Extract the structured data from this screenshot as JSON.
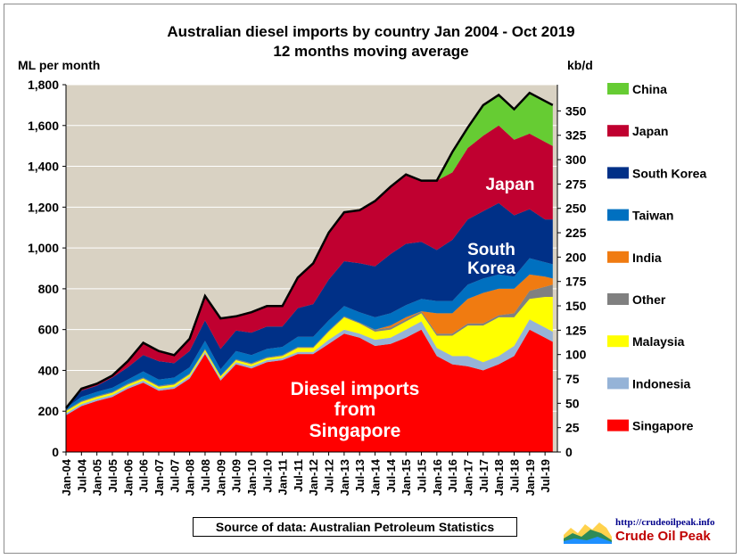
{
  "chart_data": {
    "type": "area",
    "stacked": true,
    "title": "Australian diesel imports by country Jan 2004 - Oct 2019",
    "subtitle": "12 months moving average",
    "ylabel_left": "ML per month",
    "ylabel_right": "kb/d",
    "ylim": [
      0,
      1800
    ],
    "yticks_left": [
      "0",
      "200",
      "400",
      "600",
      "800",
      "1,000",
      "1,200",
      "1,400",
      "1,600",
      "1,800"
    ],
    "yticks_right": [
      "0",
      "25",
      "50",
      "75",
      "100",
      "125",
      "150",
      "175",
      "200",
      "225",
      "250",
      "275",
      "300",
      "325",
      "350"
    ],
    "x_ticks": [
      "Jan-04",
      "Jul-04",
      "Jan-05",
      "Jul-05",
      "Jan-06",
      "Jul-06",
      "Jan-07",
      "Jul-07",
      "Jan-08",
      "Jul-08",
      "Jan-09",
      "Jul-09",
      "Jan-10",
      "Jul-10",
      "Jan-11",
      "Jul-11",
      "Jan-12",
      "Jul-12",
      "Jan-13",
      "Jul-13",
      "Jan-14",
      "Jul-14",
      "Jan-15",
      "Jul-15",
      "Jan-16",
      "Jul-16",
      "Jan-17",
      "Jul-17",
      "Jan-18",
      "Jul-18",
      "Jan-19",
      "Jul-19"
    ],
    "x_years": [
      2004.0,
      2004.5,
      2005.0,
      2005.5,
      2006.0,
      2006.5,
      2007.0,
      2007.5,
      2008.0,
      2008.5,
      2009.0,
      2009.5,
      2010.0,
      2010.5,
      2011.0,
      2011.5,
      2012.0,
      2012.5,
      2013.0,
      2013.5,
      2014.0,
      2014.5,
      2015.0,
      2015.5,
      2016.0,
      2016.5,
      2017.0,
      2017.5,
      2018.0,
      2018.5,
      2019.0,
      2019.5,
      2019.75
    ],
    "series": [
      {
        "name": "Singapore",
        "color": "#ff0000",
        "values": [
          180,
          225,
          250,
          270,
          310,
          340,
          300,
          310,
          360,
          480,
          350,
          430,
          410,
          440,
          450,
          480,
          480,
          530,
          580,
          560,
          520,
          530,
          560,
          600,
          470,
          430,
          420,
          400,
          430,
          470,
          600,
          560,
          540
        ]
      },
      {
        "name": "Indonesia",
        "color": "#95b3d7",
        "values": [
          10,
          10,
          10,
          10,
          10,
          10,
          10,
          10,
          10,
          10,
          10,
          10,
          10,
          10,
          10,
          10,
          10,
          20,
          20,
          20,
          30,
          30,
          40,
          40,
          40,
          40,
          50,
          40,
          40,
          50,
          50,
          50,
          50
        ]
      },
      {
        "name": "Malaysia",
        "color": "#ffff00",
        "values": [
          10,
          10,
          10,
          10,
          10,
          10,
          10,
          10,
          10,
          10,
          10,
          10,
          10,
          10,
          10,
          20,
          20,
          40,
          60,
          50,
          40,
          40,
          40,
          40,
          60,
          100,
          150,
          180,
          190,
          140,
          100,
          150,
          170
        ]
      },
      {
        "name": "Other",
        "color": "#808080",
        "values": [
          5,
          5,
          5,
          5,
          5,
          5,
          5,
          5,
          5,
          5,
          5,
          5,
          5,
          5,
          5,
          5,
          5,
          5,
          5,
          5,
          10,
          10,
          10,
          10,
          10,
          10,
          10,
          10,
          10,
          20,
          40,
          50,
          60
        ]
      },
      {
        "name": "India",
        "color": "#f07b11",
        "values": [
          0,
          0,
          0,
          0,
          0,
          0,
          0,
          0,
          0,
          0,
          0,
          0,
          0,
          0,
          0,
          0,
          0,
          0,
          0,
          0,
          0,
          10,
          10,
          0,
          100,
          100,
          120,
          150,
          130,
          120,
          80,
          50,
          30
        ]
      },
      {
        "name": "Taiwan",
        "color": "#0070c0",
        "values": [
          10,
          20,
          20,
          20,
          20,
          30,
          30,
          30,
          30,
          40,
          30,
          40,
          40,
          40,
          40,
          50,
          50,
          50,
          50,
          50,
          60,
          60,
          60,
          60,
          60,
          60,
          70,
          70,
          70,
          60,
          80,
          70,
          70
        ]
      },
      {
        "name": "South Korea",
        "color": "#003087",
        "values": [
          0,
          30,
          30,
          50,
          60,
          80,
          90,
          70,
          80,
          100,
          100,
          100,
          110,
          110,
          100,
          140,
          160,
          200,
          220,
          240,
          250,
          290,
          300,
          280,
          250,
          300,
          320,
          330,
          350,
          300,
          240,
          210,
          220
        ]
      },
      {
        "name": "Japan",
        "color": "#c00030",
        "values": [
          0,
          10,
          10,
          10,
          30,
          60,
          50,
          40,
          60,
          120,
          150,
          70,
          100,
          100,
          100,
          150,
          200,
          230,
          240,
          260,
          320,
          330,
          340,
          300,
          340,
          330,
          350,
          370,
          380,
          370,
          370,
          380,
          360
        ]
      },
      {
        "name": "China",
        "color": "#66cc33",
        "values": [
          0,
          0,
          0,
          0,
          0,
          0,
          0,
          0,
          0,
          0,
          0,
          0,
          0,
          0,
          0,
          0,
          0,
          0,
          0,
          0,
          0,
          0,
          0,
          0,
          0,
          100,
          100,
          150,
          150,
          150,
          200,
          200,
          200
        ]
      }
    ],
    "total_line": {
      "name": "Total",
      "color": "#000000"
    },
    "legend": [
      "China",
      "Japan",
      "South Korea",
      "Taiwan",
      "India",
      "Other",
      "Malaysia",
      "Indonesia",
      "Singapore"
    ],
    "legend_colors": [
      "#66cc33",
      "#c00030",
      "#003087",
      "#0070c0",
      "#f07b11",
      "#808080",
      "#ffff00",
      "#95b3d7",
      "#ff0000"
    ],
    "legend_position": "right",
    "annotations": {
      "japan": "Japan",
      "korea_line1": "South",
      "korea_line2": "Korea",
      "singapore_line1": "Diesel imports",
      "singapore_line2": "from",
      "singapore_line3": "Singapore"
    },
    "grid": true
  },
  "source_note": "Source of data: Australian Petroleum Statistics",
  "logo": {
    "url_text": "http://crudeoilpeak.info",
    "name": "Crude Oil Peak"
  }
}
